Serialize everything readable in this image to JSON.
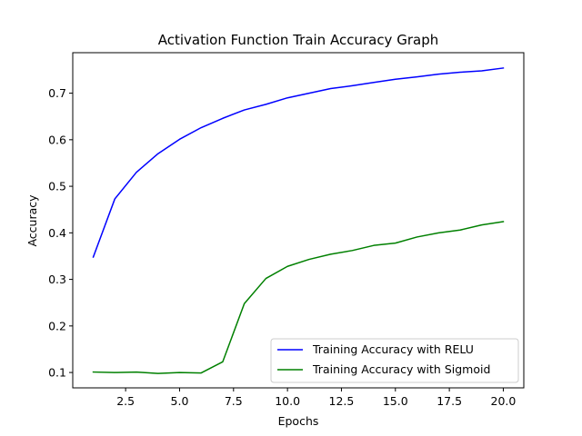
{
  "chart_data": {
    "type": "line",
    "title": "Activation Function Train Accuracy Graph",
    "xlabel": "Epochs",
    "ylabel": "Accuracy",
    "xlim": [
      0.05,
      20.95
    ],
    "ylim": [
      0.067,
      0.787
    ],
    "xticks": [
      2.5,
      5.0,
      7.5,
      10.0,
      12.5,
      15.0,
      17.5,
      20.0
    ],
    "xtick_labels": [
      "2.5",
      "5.0",
      "7.5",
      "10.0",
      "12.5",
      "15.0",
      "17.5",
      "20.0"
    ],
    "yticks": [
      0.1,
      0.2,
      0.3,
      0.4,
      0.5,
      0.6,
      0.7
    ],
    "ytick_labels": [
      "0.1",
      "0.2",
      "0.3",
      "0.4",
      "0.5",
      "0.6",
      "0.7"
    ],
    "grid": false,
    "legend_position": "lower-right",
    "x": [
      1,
      2,
      3,
      4,
      5,
      6,
      7,
      8,
      9,
      10,
      11,
      12,
      13,
      14,
      15,
      16,
      17,
      18,
      19,
      20
    ],
    "series": [
      {
        "name": "Training Accuracy with RELU",
        "color": "#0000ff",
        "values": [
          0.348,
          0.473,
          0.53,
          0.57,
          0.601,
          0.626,
          0.646,
          0.664,
          0.676,
          0.69,
          0.7,
          0.71,
          0.716,
          0.723,
          0.73,
          0.735,
          0.741,
          0.745,
          0.748,
          0.754
        ]
      },
      {
        "name": "Training Accuracy with Sigmoid",
        "color": "#008000",
        "values": [
          0.101,
          0.1,
          0.101,
          0.098,
          0.1,
          0.099,
          0.123,
          0.248,
          0.302,
          0.328,
          0.343,
          0.354,
          0.362,
          0.373,
          0.378,
          0.391,
          0.4,
          0.406,
          0.417,
          0.424
        ]
      }
    ]
  }
}
